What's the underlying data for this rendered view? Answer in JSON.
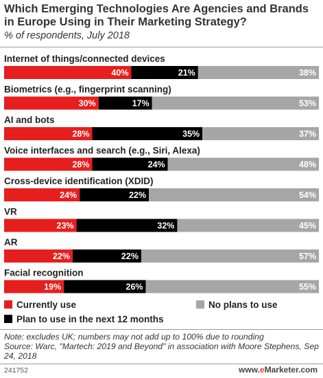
{
  "colors": {
    "current": "#e61e1e",
    "plan": "#000000",
    "noplans": "#a6a6a6"
  },
  "chart_data": {
    "type": "bar",
    "stacked": true,
    "orientation": "horizontal",
    "title": "Which Emerging Technologies Are Agencies and Brands in Europe Using in Their Marketing Strategy?",
    "subtitle": "% of respondents, July 2018",
    "categories": [
      "Internet of things/connected devices",
      "Biometrics (e.g., fingerprint scanning)",
      "AI and bots",
      "Voice interfaces and search (e.g., Siri, Alexa)",
      "Cross-device identification (XDID)",
      "VR",
      "AR",
      "Facial recognition"
    ],
    "series": [
      {
        "name": "Currently use",
        "values": [
          40,
          30,
          28,
          28,
          24,
          23,
          22,
          19
        ]
      },
      {
        "name": "Plan to use in the next 12 months",
        "values": [
          21,
          17,
          35,
          24,
          22,
          32,
          22,
          26
        ]
      },
      {
        "name": "No plans to use",
        "values": [
          38,
          53,
          37,
          48,
          54,
          45,
          57,
          55
        ]
      }
    ],
    "value_suffix": "%",
    "legend": {
      "current": "Currently use",
      "noplans": "No plans to use",
      "plan": "Plan to use in the next 12 months"
    }
  },
  "footer": {
    "note": "Note: excludes UK; numbers may not add up to 100% due to rounding",
    "source": "Source: Warc, \"Martech: 2019 and Beyond\" in association with Moore Stephens, Sep 24, 2018",
    "id": "241752",
    "brand_prefix": "www.",
    "brand_e": "e",
    "brand_rest": "Marketer.com"
  }
}
